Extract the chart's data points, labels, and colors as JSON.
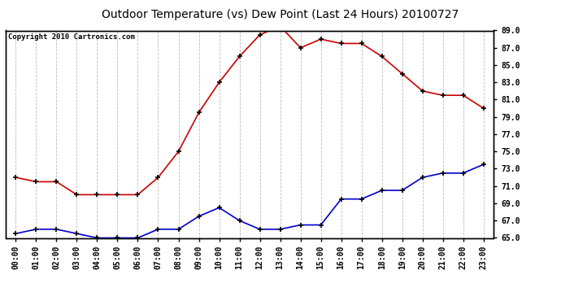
{
  "title": "Outdoor Temperature (vs) Dew Point (Last 24 Hours) 20100727",
  "copyright_text": "Copyright 2010 Cartronics.com",
  "hours": [
    "00:00",
    "01:00",
    "02:00",
    "03:00",
    "04:00",
    "05:00",
    "06:00",
    "07:00",
    "08:00",
    "09:00",
    "10:00",
    "11:00",
    "12:00",
    "13:00",
    "14:00",
    "15:00",
    "16:00",
    "17:00",
    "18:00",
    "19:00",
    "20:00",
    "21:00",
    "22:00",
    "23:00"
  ],
  "temp": [
    72.0,
    71.5,
    71.5,
    70.0,
    70.0,
    70.0,
    70.0,
    72.0,
    75.0,
    79.5,
    83.0,
    86.0,
    88.5,
    89.5,
    87.0,
    88.0,
    87.5,
    87.5,
    86.0,
    84.0,
    82.0,
    81.5,
    81.5,
    80.0
  ],
  "dewpoint": [
    65.5,
    66.0,
    66.0,
    65.5,
    65.0,
    65.0,
    65.0,
    66.0,
    66.0,
    67.5,
    68.5,
    67.0,
    66.0,
    66.0,
    66.5,
    66.5,
    69.5,
    69.5,
    70.5,
    70.5,
    72.0,
    72.5,
    72.5,
    73.5
  ],
  "temp_color": "#cc0000",
  "dewpoint_color": "#0000cc",
  "bg_color": "#ffffff",
  "grid_color": "#bbbbbb",
  "ylim_min": 65.0,
  "ylim_max": 89.0,
  "yticks": [
    65.0,
    67.0,
    69.0,
    71.0,
    73.0,
    75.0,
    77.0,
    79.0,
    81.0,
    83.0,
    85.0,
    87.0,
    89.0
  ],
  "title_fontsize": 10,
  "copyright_fontsize": 6.5,
  "tick_fontsize": 7,
  "marker": "+",
  "marker_size": 5,
  "marker_edge_width": 1.2,
  "line_width": 1.2
}
